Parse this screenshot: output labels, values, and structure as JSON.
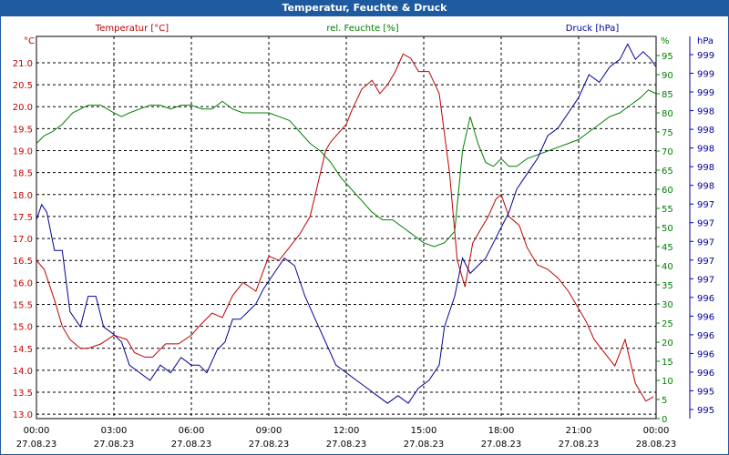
{
  "title": "Temperatur, Feuchte & Druck",
  "colors": {
    "temperature": "#c00000",
    "humidity": "#008000",
    "pressure": "#000099",
    "title_bg": "#1e5aa0"
  },
  "chart_data": {
    "type": "line",
    "grid": true,
    "legend": "top",
    "x_ticks": [
      {
        "time": "00:00",
        "date": "27.08.23"
      },
      {
        "time": "03:00",
        "date": "27.08.23"
      },
      {
        "time": "06:00",
        "date": "27.08.23"
      },
      {
        "time": "09:00",
        "date": "27.08.23"
      },
      {
        "time": "12:00",
        "date": "27.08.23"
      },
      {
        "time": "15:00",
        "date": "27.08.23"
      },
      {
        "time": "18:00",
        "date": "27.08.23"
      },
      {
        "time": "21:00",
        "date": "27.08.23"
      },
      {
        "time": "00:00",
        "date": "28.08.23"
      }
    ],
    "x_range_hours": [
      0,
      24
    ],
    "axes": {
      "temperature": {
        "unit": "°C",
        "ylim": [
          12.9,
          21.6
        ],
        "ticks": [
          "21.0",
          "20.5",
          "20.0",
          "19.5",
          "19.0",
          "18.5",
          "18.0",
          "17.5",
          "17.0",
          "16.5",
          "16.0",
          "15.5",
          "15.0",
          "14.5",
          "14.0",
          "13.5",
          "13.0"
        ]
      },
      "humidity": {
        "unit": "%",
        "ylim": [
          0,
          100
        ],
        "ticks": [
          "95",
          "90",
          "85",
          "80",
          "75",
          "70",
          "65",
          "60",
          "55",
          "50",
          "45",
          "40",
          "35",
          "30",
          "25",
          "20",
          "15",
          "10",
          "5",
          "0"
        ]
      },
      "pressure": {
        "unit": "hPa",
        "ylim": [
          994.6,
          999.6
        ],
        "ticks": [
          "999",
          "999",
          "999",
          "998",
          "998",
          "998",
          "998",
          "998",
          "997",
          "997",
          "997",
          "997",
          "997",
          "996",
          "996",
          "996",
          "996",
          "996",
          "995",
          "995"
        ]
      }
    },
    "series": [
      {
        "name": "Temperatur [°C]",
        "axis": "temperature",
        "x": [
          0,
          0.3,
          0.7,
          1,
          1.3,
          1.7,
          2,
          2.5,
          3,
          3.5,
          3.8,
          4.2,
          4.5,
          5,
          5.5,
          6,
          6.3,
          6.8,
          7.2,
          7.6,
          8,
          8.5,
          9,
          9.4,
          9.8,
          10.2,
          10.6,
          11,
          11.2,
          11.4,
          11.7,
          12,
          12.2,
          12.6,
          13,
          13.3,
          13.6,
          13.9,
          14.2,
          14.5,
          14.8,
          15.2,
          15.6,
          16,
          16.3,
          16.6,
          16.9,
          17.2,
          17.5,
          17.8,
          18,
          18.3,
          18.7,
          19,
          19.4,
          19.8,
          20.2,
          20.6,
          21,
          21.3,
          21.6,
          22,
          22.4,
          22.8,
          23.2,
          23.6,
          23.9
        ],
        "values": [
          16.5,
          16.3,
          15.6,
          15,
          14.7,
          14.5,
          14.5,
          14.6,
          14.8,
          14.7,
          14.4,
          14.3,
          14.3,
          14.6,
          14.6,
          14.8,
          15,
          15.3,
          15.2,
          15.7,
          16,
          15.8,
          16.6,
          16.5,
          16.8,
          17.1,
          17.5,
          18.5,
          19,
          19.2,
          19.4,
          19.6,
          19.9,
          20.4,
          20.6,
          20.3,
          20.5,
          20.8,
          21.2,
          21.1,
          20.8,
          20.8,
          20.3,
          18.5,
          16.5,
          15.9,
          16.9,
          17.2,
          17.5,
          17.9,
          18,
          17.5,
          17.3,
          16.8,
          16.4,
          16.3,
          16.1,
          15.8,
          15.4,
          15.1,
          14.7,
          14.4,
          14.1,
          14.7,
          13.7,
          13.3,
          13.4
        ]
      },
      {
        "name": "rel. Feuchte [%]",
        "axis": "humidity",
        "x": [
          0,
          0.3,
          0.6,
          1,
          1.4,
          1.7,
          2,
          2.5,
          3,
          3.3,
          3.6,
          4,
          4.4,
          4.8,
          5.2,
          5.6,
          6,
          6.4,
          6.8,
          7.2,
          7.6,
          8,
          8.5,
          9,
          9.4,
          9.8,
          10.2,
          10.6,
          11,
          11.4,
          11.8,
          12.2,
          12.6,
          13,
          13.4,
          13.8,
          14.2,
          14.6,
          15,
          15.4,
          15.8,
          16.2,
          16.5,
          16.8,
          17.1,
          17.4,
          17.7,
          18,
          18.3,
          18.6,
          19,
          19.4,
          19.8,
          20.2,
          20.6,
          21,
          21.4,
          21.8,
          22.2,
          22.6,
          23,
          23.4,
          23.7,
          24
        ],
        "values": [
          72,
          74,
          75,
          77,
          80,
          81,
          82,
          82,
          80,
          79,
          80,
          81,
          82,
          82,
          81,
          82,
          82,
          81,
          81,
          83,
          81,
          80,
          80,
          80,
          79,
          78,
          75,
          72,
          70,
          67,
          63,
          60,
          57,
          54,
          52,
          52,
          50,
          48,
          46,
          45,
          46,
          49,
          70,
          79,
          72,
          67,
          66,
          68,
          66,
          66,
          68,
          69,
          70,
          71,
          72,
          73,
          75,
          77,
          79,
          80,
          82,
          84,
          86,
          85
        ]
      },
      {
        "name": "Druck [hPa]",
        "axis": "pressure",
        "x": [
          0,
          0.2,
          0.4,
          0.7,
          1,
          1.3,
          1.7,
          2,
          2.3,
          2.6,
          3,
          3.3,
          3.6,
          4,
          4.4,
          4.8,
          5.2,
          5.6,
          6,
          6.3,
          6.6,
          7,
          7.3,
          7.6,
          7.9,
          8.2,
          8.5,
          8.8,
          9.2,
          9.6,
          10,
          10.4,
          10.8,
          11.2,
          11.6,
          12,
          12.4,
          12.8,
          13.2,
          13.6,
          14,
          14.4,
          14.8,
          15.2,
          15.6,
          15.8,
          16,
          16.2,
          16.5,
          16.8,
          17.1,
          17.4,
          17.7,
          18,
          18.3,
          18.6,
          19,
          19.4,
          19.8,
          20.2,
          20.6,
          21,
          21.4,
          21.8,
          22.2,
          22.6,
          22.9,
          23.2,
          23.5,
          23.8,
          24
        ],
        "values": [
          997.2,
          997.4,
          997.3,
          996.8,
          996.8,
          996,
          995.8,
          996.2,
          996.2,
          995.8,
          995.7,
          995.6,
          995.3,
          995.2,
          995.1,
          995.3,
          995.2,
          995.4,
          995.3,
          995.3,
          995.2,
          995.5,
          995.6,
          995.9,
          995.9,
          996,
          996.1,
          996.3,
          996.5,
          996.7,
          996.6,
          996.2,
          995.9,
          995.6,
          995.3,
          995.2,
          995.1,
          995,
          994.9,
          994.8,
          994.9,
          994.8,
          995,
          995.1,
          995.3,
          995.8,
          996,
          996.2,
          996.7,
          996.5,
          996.6,
          996.7,
          996.9,
          997.1,
          997.3,
          997.6,
          997.8,
          998,
          998.3,
          998.4,
          998.6,
          998.8,
          999.1,
          999,
          999.2,
          999.3,
          999.5,
          999.3,
          999.4,
          999.3,
          999.2
        ]
      }
    ]
  }
}
